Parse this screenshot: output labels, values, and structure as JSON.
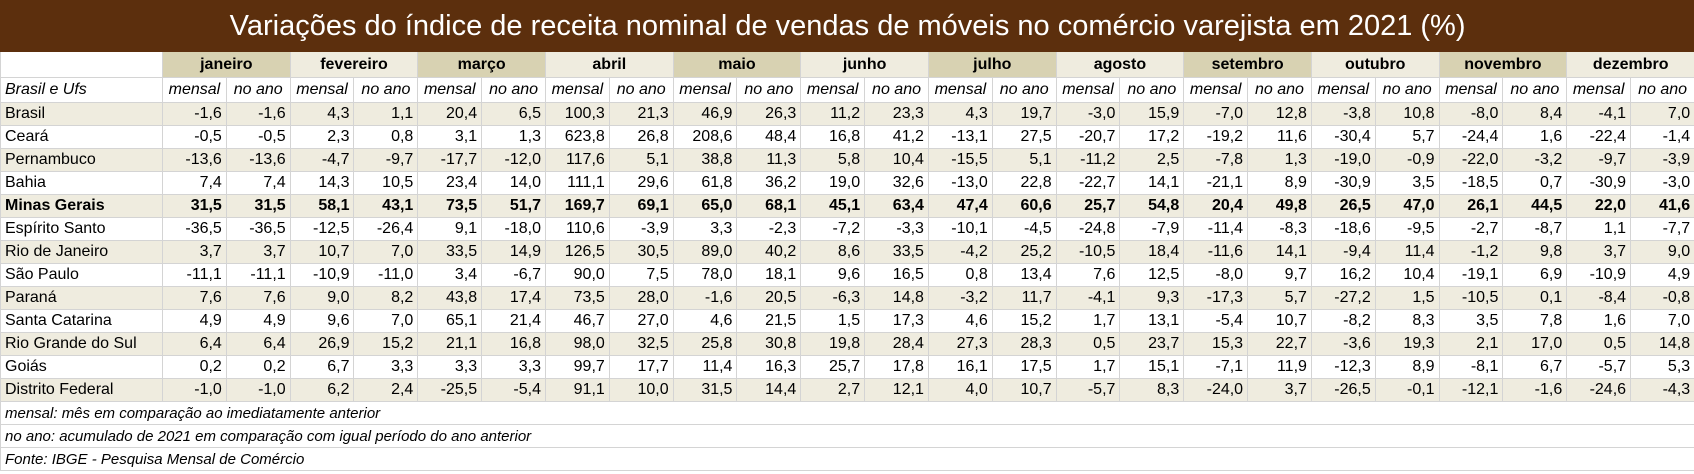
{
  "title": "Variações do índice de receita nominal de vendas de móveis no comércio varejista em 2021  (%)",
  "months": [
    "janeiro",
    "fevereiro",
    "março",
    "abril",
    "maio",
    "junho",
    "julho",
    "agosto",
    "setembro",
    "outubro",
    "novembro",
    "dezembro"
  ],
  "row_header": "Brasil e Ufs",
  "column_labels": [
    "mensal",
    "no ano"
  ],
  "rows": [
    {
      "name": "Brasil",
      "values": [
        "-1,6",
        "-1,6",
        "4,3",
        "1,1",
        "20,4",
        "6,5",
        "100,3",
        "21,3",
        "46,9",
        "26,3",
        "11,2",
        "23,3",
        "4,3",
        "19,7",
        "-3,0",
        "15,9",
        "-7,0",
        "12,8",
        "-3,8",
        "10,8",
        "-8,0",
        "8,4",
        "-4,1",
        "7,0"
      ]
    },
    {
      "name": "Ceará",
      "values": [
        "-0,5",
        "-0,5",
        "2,3",
        "0,8",
        "3,1",
        "1,3",
        "623,8",
        "26,8",
        "208,6",
        "48,4",
        "16,8",
        "41,2",
        "-13,1",
        "27,5",
        "-20,7",
        "17,2",
        "-19,2",
        "11,6",
        "-30,4",
        "5,7",
        "-24,4",
        "1,6",
        "-22,4",
        "-1,4"
      ]
    },
    {
      "name": "Pernambuco",
      "values": [
        "-13,6",
        "-13,6",
        "-4,7",
        "-9,7",
        "-17,7",
        "-12,0",
        "117,6",
        "5,1",
        "38,8",
        "11,3",
        "5,8",
        "10,4",
        "-15,5",
        "5,1",
        "-11,2",
        "2,5",
        "-7,8",
        "1,3",
        "-19,0",
        "-0,9",
        "-22,0",
        "-3,2",
        "-9,7",
        "-3,9"
      ]
    },
    {
      "name": "Bahia",
      "values": [
        "7,4",
        "7,4",
        "14,3",
        "10,5",
        "23,4",
        "14,0",
        "111,1",
        "29,6",
        "61,8",
        "36,2",
        "19,0",
        "32,6",
        "-13,0",
        "22,8",
        "-22,7",
        "14,1",
        "-21,1",
        "8,9",
        "-30,9",
        "3,5",
        "-18,5",
        "0,7",
        "-30,9",
        "-3,0"
      ]
    },
    {
      "name": "Minas Gerais",
      "values": [
        "31,5",
        "31,5",
        "58,1",
        "43,1",
        "73,5",
        "51,7",
        "169,7",
        "69,1",
        "65,0",
        "68,1",
        "45,1",
        "63,4",
        "47,4",
        "60,6",
        "25,7",
        "54,8",
        "20,4",
        "49,8",
        "26,5",
        "47,0",
        "26,1",
        "44,5",
        "22,0",
        "41,6"
      ]
    },
    {
      "name": "Espírito Santo",
      "values": [
        "-36,5",
        "-36,5",
        "-12,5",
        "-26,4",
        "9,1",
        "-18,0",
        "110,6",
        "-3,9",
        "3,3",
        "-2,3",
        "-7,2",
        "-3,3",
        "-10,1",
        "-4,5",
        "-24,8",
        "-7,9",
        "-11,4",
        "-8,3",
        "-18,6",
        "-9,5",
        "-2,7",
        "-8,7",
        "1,1",
        "-7,7"
      ]
    },
    {
      "name": "Rio de Janeiro",
      "values": [
        "3,7",
        "3,7",
        "10,7",
        "7,0",
        "33,5",
        "14,9",
        "126,5",
        "30,5",
        "89,0",
        "40,2",
        "8,6",
        "33,5",
        "-4,2",
        "25,2",
        "-10,5",
        "18,4",
        "-11,6",
        "14,1",
        "-9,4",
        "11,4",
        "-1,2",
        "9,8",
        "3,7",
        "9,0"
      ]
    },
    {
      "name": "São Paulo",
      "values": [
        "-11,1",
        "-11,1",
        "-10,9",
        "-11,0",
        "3,4",
        "-6,7",
        "90,0",
        "7,5",
        "78,0",
        "18,1",
        "9,6",
        "16,5",
        "0,8",
        "13,4",
        "7,6",
        "12,5",
        "-8,0",
        "9,7",
        "16,2",
        "10,4",
        "-19,1",
        "6,9",
        "-10,9",
        "4,9"
      ]
    },
    {
      "name": "Paraná",
      "values": [
        "7,6",
        "7,6",
        "9,0",
        "8,2",
        "43,8",
        "17,4",
        "73,5",
        "28,0",
        "-1,6",
        "20,5",
        "-6,3",
        "14,8",
        "-3,2",
        "11,7",
        "-4,1",
        "9,3",
        "-17,3",
        "5,7",
        "-27,2",
        "1,5",
        "-10,5",
        "0,1",
        "-8,4",
        "-0,8"
      ]
    },
    {
      "name": "Santa Catarina",
      "values": [
        "4,9",
        "4,9",
        "9,6",
        "7,0",
        "65,1",
        "21,4",
        "46,7",
        "27,0",
        "4,6",
        "21,5",
        "1,5",
        "17,3",
        "4,6",
        "15,2",
        "1,7",
        "13,1",
        "-5,4",
        "10,7",
        "-8,2",
        "8,3",
        "3,5",
        "7,8",
        "1,6",
        "7,0"
      ]
    },
    {
      "name": "Rio Grande do Sul",
      "values": [
        "6,4",
        "6,4",
        "26,9",
        "15,2",
        "21,1",
        "16,8",
        "98,0",
        "32,5",
        "25,8",
        "30,8",
        "19,8",
        "28,4",
        "27,3",
        "28,3",
        "0,5",
        "23,7",
        "15,3",
        "22,7",
        "-3,6",
        "19,3",
        "2,1",
        "17,0",
        "0,5",
        "14,8"
      ]
    },
    {
      "name": "Goiás",
      "values": [
        "0,2",
        "0,2",
        "6,7",
        "3,3",
        "3,3",
        "3,3",
        "99,7",
        "17,7",
        "11,4",
        "16,3",
        "25,7",
        "17,8",
        "16,1",
        "17,5",
        "1,7",
        "15,1",
        "-7,1",
        "11,9",
        "-12,3",
        "8,9",
        "-8,1",
        "6,7",
        "-5,7",
        "5,3"
      ]
    },
    {
      "name": "Distrito Federal",
      "values": [
        "-1,0",
        "-1,0",
        "6,2",
        "2,4",
        "-25,5",
        "-5,4",
        "91,1",
        "10,0",
        "31,5",
        "14,4",
        "2,7",
        "12,1",
        "4,0",
        "10,7",
        "-5,7",
        "8,3",
        "-24,0",
        "3,7",
        "-26,5",
        "-0,1",
        "-12,1",
        "-1,6",
        "-24,6",
        "-4,3"
      ]
    }
  ],
  "notes": [
    "mensal: mês em comparação ao imediatamente anterior",
    "no ano: acumulado de 2021 em comparação com igual período do ano anterior",
    "Fonte: IBGE - Pesquisa Mensal de Comércio"
  ]
}
